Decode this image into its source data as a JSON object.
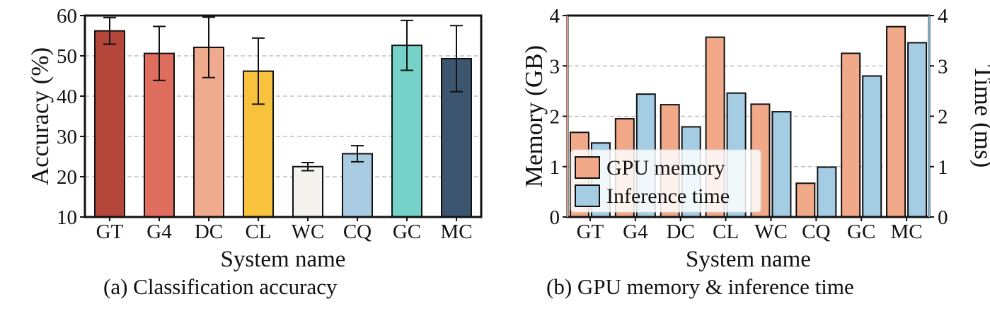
{
  "figure": {
    "caption_a": "(a)  Classification accuracy",
    "caption_b": "(b)  GPU memory & inference time"
  },
  "chart_data": [
    {
      "type": "bar",
      "xlabel": "System name",
      "ylabel": "Accuracy (%)",
      "ylim": [
        10,
        60
      ],
      "yticks": [
        10,
        20,
        30,
        40,
        50,
        60
      ],
      "grid": true,
      "categories": [
        "GT",
        "G4",
        "DC",
        "CL",
        "WC",
        "CQ",
        "GC",
        "MC"
      ],
      "values": [
        56.2,
        50.6,
        52.1,
        46.2,
        22.5,
        25.7,
        52.6,
        49.3
      ],
      "errors": [
        3.3,
        6.7,
        7.5,
        8.2,
        1.0,
        2.0,
        6.2,
        8.2
      ],
      "colors": [
        "#b5463a",
        "#e06e5e",
        "#f0ab8f",
        "#f8c23c",
        "#f4f3ee",
        "#a9cce2",
        "#74d2c9",
        "#3c5670"
      ]
    },
    {
      "type": "bar",
      "xlabel": "System name",
      "ylabel": "Memory (GB)",
      "ylabel_right": "Time (ms)",
      "ylim": [
        0,
        4
      ],
      "ylim_right": [
        0,
        4
      ],
      "yticks": [
        0,
        1,
        2,
        3,
        4
      ],
      "grid": true,
      "legend_position": "lower-left",
      "categories": [
        "GT",
        "G4",
        "DC",
        "CL",
        "WC",
        "CQ",
        "GC",
        "MC"
      ],
      "series": [
        {
          "name": "GPU memory",
          "axis": "left",
          "color": "#f2a98a",
          "values": [
            1.68,
            1.95,
            2.23,
            3.57,
            2.24,
            0.67,
            3.25,
            3.78
          ]
        },
        {
          "name": "Inference time",
          "axis": "right",
          "color": "#a4cce3",
          "values": [
            1.47,
            2.44,
            1.79,
            2.46,
            2.09,
            0.99,
            2.8,
            3.46
          ]
        }
      ]
    }
  ]
}
